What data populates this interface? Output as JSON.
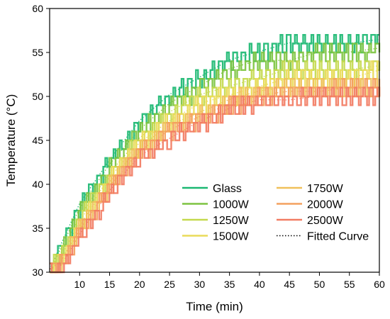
{
  "chart_data": {
    "type": "line",
    "xlabel": "Time (min)",
    "ylabel": "Temperature (°C)",
    "xlim": [
      5,
      60
    ],
    "ylim": [
      30,
      60
    ],
    "xticks": [
      10,
      15,
      20,
      25,
      30,
      35,
      40,
      45,
      50,
      55,
      60
    ],
    "yticks": [
      30,
      35,
      40,
      45,
      50,
      55,
      60
    ],
    "grid": false,
    "legend_position": "bottom-right",
    "legend_columns": 2,
    "fitted_curve_label": "Fitted Curve",
    "fitted_curve_style": "dotted",
    "series": [
      {
        "name": "Glass",
        "color": "#1bb872",
        "x": [
          5,
          7,
          10,
          15,
          20,
          25,
          30,
          35,
          40,
          45,
          50,
          55,
          60
        ],
        "y": [
          30,
          33,
          37.5,
          42.5,
          47,
          50,
          52,
          54,
          55,
          56,
          56,
          56,
          56.5
        ]
      },
      {
        "name": "1000W",
        "color": "#7dc440",
        "x": [
          5,
          7,
          10,
          15,
          20,
          25,
          30,
          35,
          40,
          45,
          50,
          55,
          60
        ],
        "y": [
          30,
          32.5,
          37,
          42,
          46,
          49,
          51,
          53,
          54,
          54,
          55,
          55,
          55.5
        ]
      },
      {
        "name": "1250W",
        "color": "#c4d94d",
        "x": [
          5,
          7,
          10,
          15,
          20,
          25,
          30,
          35,
          40,
          45,
          50,
          55,
          60
        ],
        "y": [
          30,
          32,
          36,
          41,
          45,
          48,
          50,
          51,
          52,
          53,
          53,
          53,
          53.5
        ]
      },
      {
        "name": "1500W",
        "color": "#eadb59",
        "x": [
          5,
          7,
          10,
          15,
          20,
          25,
          30,
          35,
          40,
          45,
          50,
          55,
          60
        ],
        "y": [
          30,
          31.5,
          35.5,
          40.5,
          44.5,
          47,
          49,
          50,
          51,
          52,
          52,
          52,
          53
        ]
      },
      {
        "name": "1750W",
        "color": "#f0c05a",
        "x": [
          5,
          7,
          10,
          15,
          20,
          25,
          30,
          35,
          40,
          45,
          50,
          55,
          60
        ],
        "y": [
          30,
          31,
          35,
          40,
          44,
          46.5,
          48,
          49.5,
          50.5,
          51,
          51,
          51,
          51
        ]
      },
      {
        "name": "2000W",
        "color": "#f4a05e",
        "x": [
          5,
          7,
          10,
          15,
          20,
          25,
          30,
          35,
          40,
          45,
          50,
          55,
          60
        ],
        "y": [
          30,
          31,
          34.5,
          39.5,
          43.5,
          46,
          47.5,
          49,
          50,
          50.5,
          50.5,
          51,
          51
        ]
      },
      {
        "name": "2500W",
        "color": "#f27c63",
        "x": [
          5,
          7,
          10,
          15,
          20,
          25,
          30,
          35,
          40,
          45,
          50,
          55,
          60
        ],
        "y": [
          30,
          30.5,
          34,
          39,
          43,
          45,
          47,
          48.5,
          49.5,
          49.5,
          50,
          50,
          50
        ]
      }
    ]
  }
}
